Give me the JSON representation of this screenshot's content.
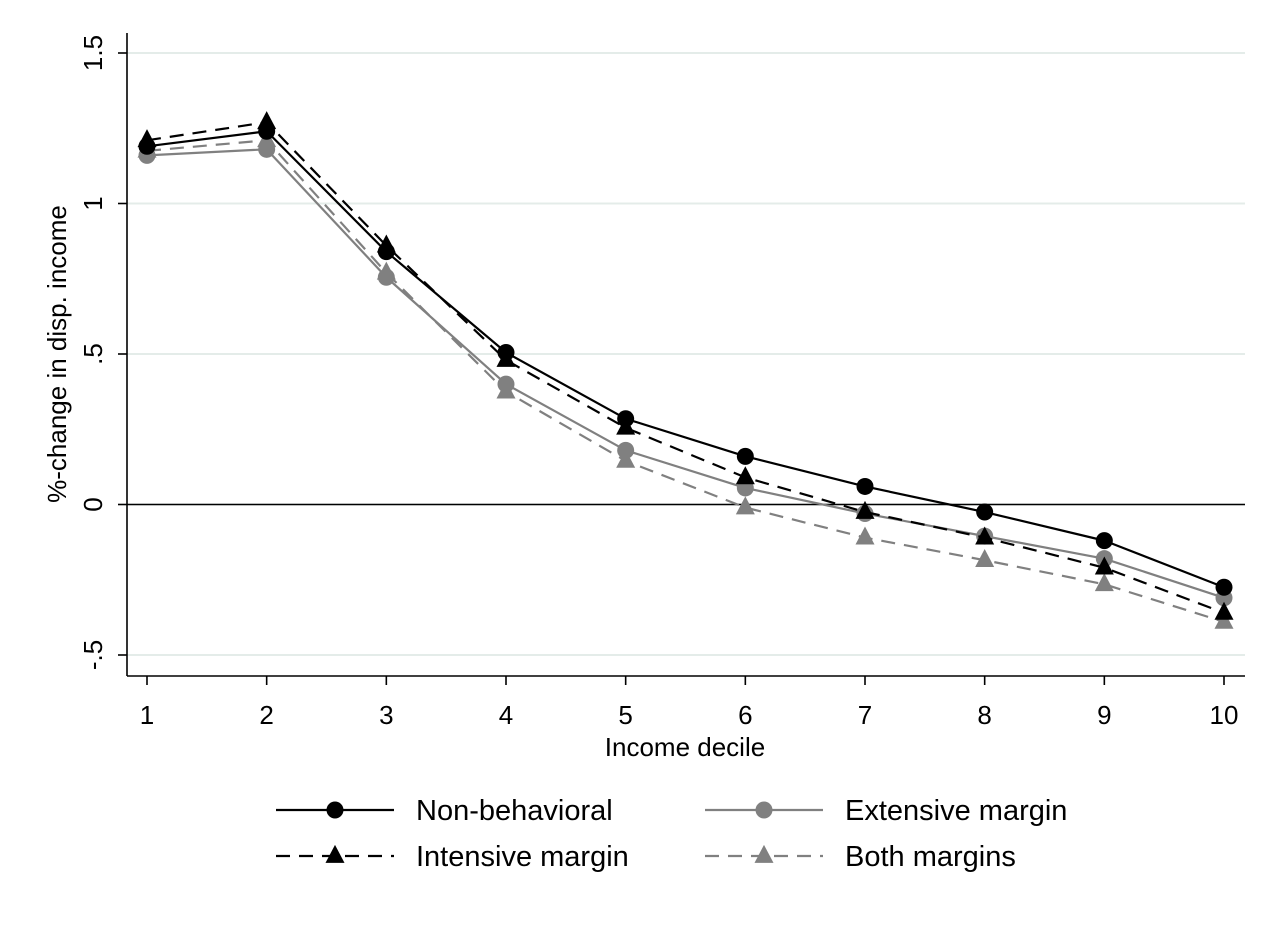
{
  "chart_data": {
    "type": "line",
    "title": "",
    "xlabel": "Income decile",
    "ylabel": "%-change in disp. income",
    "x": [
      1,
      2,
      3,
      4,
      5,
      6,
      7,
      8,
      9,
      10
    ],
    "xlim": [
      1,
      10
    ],
    "ylim": [
      -0.5,
      1.5
    ],
    "xticks": [
      1,
      2,
      3,
      4,
      5,
      6,
      7,
      8,
      9,
      10
    ],
    "xtick_labels": [
      "1",
      "2",
      "3",
      "4",
      "5",
      "6",
      "7",
      "8",
      "9",
      "10"
    ],
    "yticks": [
      -0.5,
      0,
      0.5,
      1,
      1.5
    ],
    "ytick_labels": [
      "-.5",
      "0",
      ".5",
      "1",
      "1.5"
    ],
    "grid": "horizontal",
    "zero_line": true,
    "legend_position": "bottom",
    "series": [
      {
        "name": "Non-behavioral",
        "values": [
          1.19,
          1.24,
          0.84,
          0.505,
          0.285,
          0.16,
          0.06,
          -0.025,
          -0.12,
          -0.275
        ],
        "color": "#000000",
        "line_style": "solid",
        "marker": "circle"
      },
      {
        "name": "Intensive margin",
        "values": [
          1.21,
          1.27,
          0.86,
          0.48,
          0.255,
          0.09,
          -0.025,
          -0.11,
          -0.21,
          -0.36
        ],
        "color": "#000000",
        "line_style": "dashed",
        "marker": "triangle"
      },
      {
        "name": "Extensive margin",
        "values": [
          1.16,
          1.18,
          0.755,
          0.4,
          0.18,
          0.055,
          -0.03,
          -0.105,
          -0.18,
          -0.31
        ],
        "color": "#808080",
        "line_style": "solid",
        "marker": "circle"
      },
      {
        "name": "Both margins",
        "values": [
          1.175,
          1.21,
          0.77,
          0.375,
          0.145,
          -0.01,
          -0.11,
          -0.185,
          -0.265,
          -0.39
        ],
        "color": "#808080",
        "line_style": "dashed",
        "marker": "triangle"
      }
    ]
  }
}
